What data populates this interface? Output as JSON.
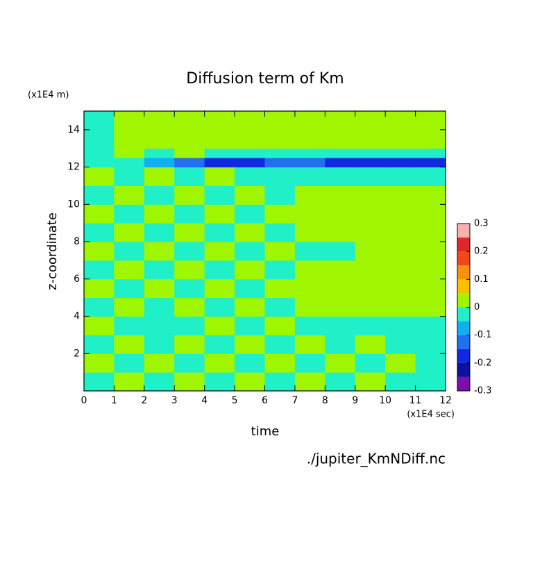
{
  "chart_data": {
    "type": "heatmap",
    "title": "Diffusion term of Km",
    "x_label": "time",
    "x_unit": "(x1E4 sec)",
    "y_label": "z-coordinate",
    "y_unit": "(x1E4 m)",
    "source": "./jupiter_KmNDiff.nc",
    "xlim": [
      0,
      12
    ],
    "xticks": [
      0,
      1,
      2,
      3,
      4,
      5,
      6,
      7,
      8,
      9,
      10,
      11,
      12
    ],
    "ylim": [
      0,
      15
    ],
    "yticks": [
      2,
      4,
      6,
      8,
      10,
      12,
      14
    ],
    "x_edges": [
      0,
      1,
      2,
      3,
      4,
      5,
      6,
      7,
      8,
      9,
      10,
      11,
      12
    ],
    "y_edges": [
      0,
      1,
      2,
      3,
      4,
      5,
      6,
      7,
      8,
      9,
      10,
      11,
      12,
      12.5,
      13,
      15
    ],
    "z": [
      [
        -0.02,
        0.01,
        -0.02,
        0.01,
        -0.02,
        0.01,
        -0.02,
        0.01,
        -0.02,
        0.01,
        -0.02,
        -0.02
      ],
      [
        0.01,
        -0.02,
        0.01,
        -0.02,
        0.01,
        -0.02,
        0.01,
        -0.02,
        0.01,
        -0.02,
        0.01,
        -0.02
      ],
      [
        -0.02,
        0.01,
        -0.02,
        0.01,
        -0.02,
        0.01,
        -0.02,
        0.01,
        -0.02,
        0.01,
        -0.02,
        -0.02
      ],
      [
        0.01,
        -0.03,
        -0.02,
        -0.02,
        0.01,
        -0.02,
        0.01,
        -0.02,
        -0.02,
        -0.02,
        -0.02,
        -0.02
      ],
      [
        -0.02,
        0.01,
        -0.02,
        0.01,
        -0.02,
        0.01,
        -0.02,
        0,
        0,
        0,
        0,
        0
      ],
      [
        0.01,
        -0.02,
        0.01,
        -0.02,
        0.01,
        -0.02,
        0.01,
        0,
        0,
        0,
        0,
        0
      ],
      [
        -0.02,
        0.01,
        -0.02,
        0.01,
        -0.02,
        0.01,
        -0.02,
        0,
        0,
        0,
        0,
        0
      ],
      [
        0.01,
        -0.02,
        0.01,
        -0.02,
        0.01,
        -0.02,
        0.01,
        -0.02,
        -0.02,
        0,
        0,
        0
      ],
      [
        -0.02,
        0.01,
        -0.02,
        0.01,
        -0.02,
        0.01,
        -0.02,
        0.01,
        0,
        0,
        0,
        0
      ],
      [
        0.01,
        -0.02,
        0.01,
        -0.02,
        0.01,
        -0.02,
        0.01,
        0,
        0,
        0,
        0,
        0
      ],
      [
        -0.02,
        0.01,
        -0.02,
        0.01,
        -0.02,
        0.01,
        -0.02,
        0,
        0,
        0,
        0,
        0
      ],
      [
        0.01,
        -0.02,
        0.01,
        -0.02,
        0.01,
        -0.02,
        -0.02,
        -0.02,
        -0.02,
        -0.02,
        -0.02,
        -0.02
      ],
      [
        -0.02,
        -0.04,
        -0.08,
        -0.15,
        -0.2,
        -0.2,
        -0.15,
        -0.12,
        -0.2,
        -0.2,
        -0.2,
        -0.2
      ],
      [
        -0.02,
        0.01,
        -0.02,
        0.01,
        -0.02,
        -0.02,
        -0.02,
        -0.02,
        -0.02,
        -0.02,
        -0.02,
        -0.02
      ],
      [
        -0.02,
        0,
        0,
        0,
        0,
        0,
        0,
        0,
        0,
        0,
        0,
        0
      ]
    ],
    "levels": [
      -0.3,
      -0.25,
      -0.2,
      -0.15,
      -0.1,
      -0.05,
      0,
      0.05,
      0.1,
      0.15,
      0.2,
      0.25,
      0.3
    ],
    "colors": [
      "#7a10a8",
      "#1010a0",
      "#1028e0",
      "#2070f0",
      "#10b0f0",
      "#20f0c8",
      "#a0f500",
      "#f8c000",
      "#f89010",
      "#f04818",
      "#e02828",
      "#f8b0b0"
    ],
    "colorbar_ticks": [
      -0.3,
      -0.2,
      -0.1,
      0,
      0.1,
      0.2,
      0.3
    ]
  }
}
